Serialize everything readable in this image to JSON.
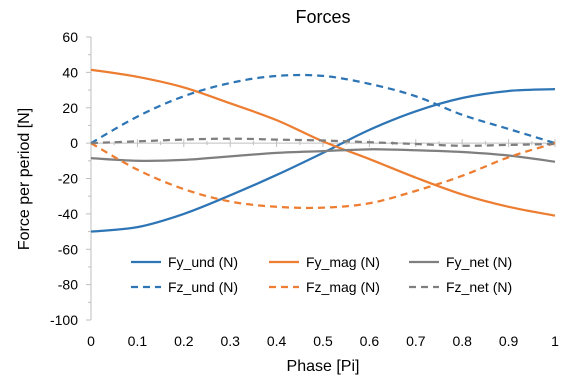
{
  "chart_data": {
    "type": "line",
    "title": "Forces",
    "xlabel": "Phase [Pi]",
    "ylabel": "Force per period [N]",
    "xlim": [
      0,
      1
    ],
    "ylim": [
      -100,
      60
    ],
    "xticks": [
      0,
      0.1,
      0.2,
      0.3,
      0.4,
      0.5,
      0.6,
      0.7,
      0.8,
      0.9,
      1
    ],
    "xtick_labels": [
      "0",
      "0.1",
      "0.2",
      "0.3",
      "0.4",
      "0.5",
      "0.6",
      "0.7",
      "0.8",
      "0.9",
      "1"
    ],
    "yticks": [
      -100,
      -80,
      -60,
      -40,
      -20,
      0,
      20,
      40,
      60
    ],
    "ytick_labels": [
      "-100",
      "-80",
      "-60",
      "-40",
      "-20",
      "0",
      "20",
      "40",
      "60"
    ],
    "grid": false,
    "legend_placement": "bottom-center",
    "x": [
      0,
      0.1,
      0.2,
      0.3,
      0.4,
      0.5,
      0.6,
      0.7,
      0.8,
      0.9,
      1
    ],
    "series": [
      {
        "name": "Fy_und (N)",
        "color": "#2e75b6",
        "dash": "solid",
        "values": [
          -50,
          -47.5,
          -40,
          -29.5,
          -18,
          -5.5,
          7.5,
          18,
          25.5,
          29.5,
          30.5
        ]
      },
      {
        "name": "Fy_mag (N)",
        "color": "#ed7d31",
        "dash": "solid",
        "values": [
          41.5,
          37.5,
          31.5,
          22.5,
          13,
          1,
          -9,
          -19.5,
          -29,
          -36,
          -41
        ]
      },
      {
        "name": "Fy_net (N)",
        "color": "#7f7f7f",
        "dash": "solid",
        "values": [
          -8.5,
          -10,
          -9.5,
          -7.5,
          -5.5,
          -4.5,
          -3.5,
          -4,
          -5,
          -7,
          -10.5
        ]
      },
      {
        "name": "Fz_und (N)",
        "color": "#2e75b6",
        "dash": "dashed",
        "values": [
          0,
          15,
          26.5,
          34,
          38,
          38,
          33.5,
          26.5,
          16,
          8,
          0
        ]
      },
      {
        "name": "Fz_mag (N)",
        "color": "#ed7d31",
        "dash": "dashed",
        "values": [
          0,
          -15,
          -26,
          -33,
          -36,
          -36.5,
          -34,
          -27,
          -18.5,
          -8,
          0
        ]
      },
      {
        "name": "Fz_net (N)",
        "color": "#7f7f7f",
        "dash": "dashed",
        "values": [
          0,
          1,
          2,
          2.5,
          2,
          1.5,
          0.5,
          -0.5,
          -1.5,
          -1,
          -0.5
        ]
      }
    ]
  }
}
